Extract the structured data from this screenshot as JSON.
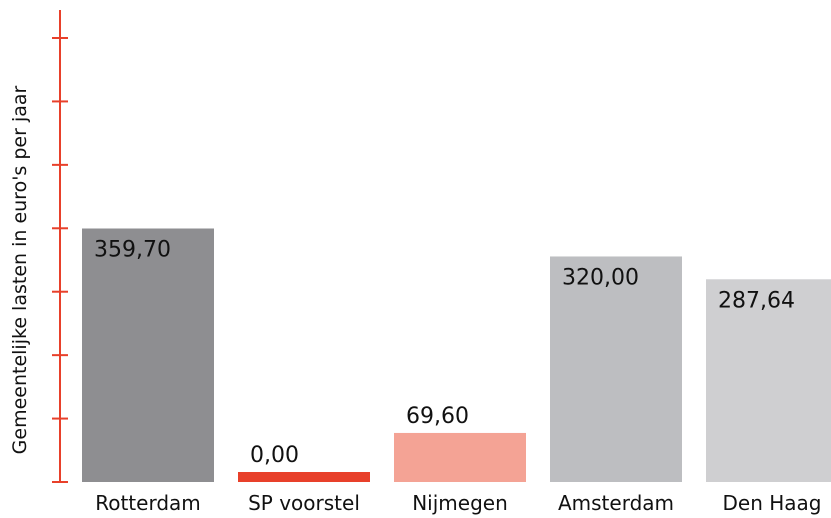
{
  "chart_data": {
    "type": "bar",
    "title": "",
    "xlabel": "",
    "ylabel": "Gemeentelijke lasten in euro's per jaar",
    "ylim": [
      0,
      630
    ],
    "ytick_step": 90,
    "grid": false,
    "categories": [
      "Rotterdam",
      "SP voorstel",
      "Nijmegen",
      "Amsterdam",
      "Den Haag"
    ],
    "values": [
      359.7,
      0.0,
      69.6,
      320.0,
      287.64
    ],
    "value_labels": [
      "359,70",
      "0,00",
      "69,60",
      "320,00",
      "287,64"
    ],
    "colors": [
      "#8e8e91",
      "#e8402a",
      "#f4a395",
      "#bdbec1",
      "#cfcfd1"
    ],
    "axis_color": "#e8402a"
  }
}
